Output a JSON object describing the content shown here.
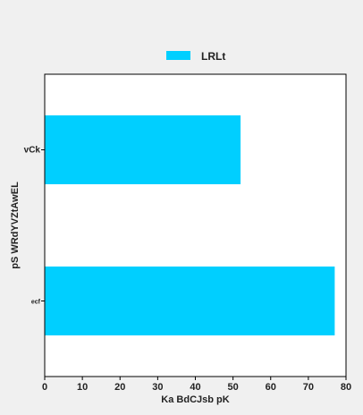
{
  "chart_data": {
    "type": "bar",
    "orientation": "horizontal",
    "categories": [
      "vCk",
      "ecf"
    ],
    "series": [
      {
        "name": "LRLt",
        "values": [
          52,
          77
        ],
        "color": "#00cfff"
      }
    ],
    "xlabel": "Ka BdCJsb pK",
    "ylabel": "pS WRdYVZtAwEL",
    "xlim": [
      0,
      80
    ],
    "xticks": [
      0,
      10,
      20,
      30,
      40,
      50,
      60,
      70,
      80
    ],
    "grid": false,
    "legend_position": "top-center"
  },
  "colors": {
    "background": "#f0f0f0",
    "plot_background": "#ffffff",
    "bar": "#00cfff",
    "axis": "#000000",
    "text": "#222222"
  }
}
